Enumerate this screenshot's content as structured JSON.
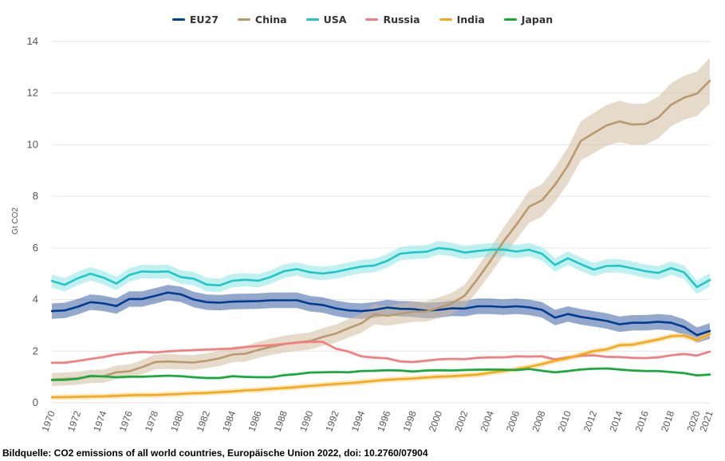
{
  "chart_data": {
    "type": "line",
    "ylabel": "Gt CO2",
    "ylim": [
      0,
      14
    ],
    "yticks": [
      0,
      2,
      4,
      6,
      8,
      10,
      12,
      14
    ],
    "xlim": [
      1970,
      2021
    ],
    "xticks": [
      1970,
      1972,
      1974,
      1976,
      1978,
      1980,
      1982,
      1984,
      1986,
      1988,
      1990,
      1992,
      1994,
      1996,
      1998,
      2000,
      2002,
      2004,
      2006,
      2008,
      2010,
      2012,
      2014,
      2016,
      2018,
      2020,
      2021
    ],
    "grid": "horizontal",
    "legend_position": "top",
    "x": [
      1970,
      1971,
      1972,
      1973,
      1974,
      1975,
      1976,
      1977,
      1978,
      1979,
      1980,
      1981,
      1982,
      1983,
      1984,
      1985,
      1986,
      1987,
      1988,
      1989,
      1990,
      1991,
      1992,
      1993,
      1994,
      1995,
      1996,
      1997,
      1998,
      1999,
      2000,
      2001,
      2002,
      2003,
      2004,
      2005,
      2006,
      2007,
      2008,
      2009,
      2010,
      2011,
      2012,
      2013,
      2014,
      2015,
      2016,
      2017,
      2018,
      2019,
      2020,
      2021
    ],
    "series": [
      {
        "name": "EU27",
        "color": "#003c8f",
        "band_color": "#3d5fa3",
        "band": 0.3,
        "values": [
          3.55,
          3.58,
          3.72,
          3.9,
          3.85,
          3.75,
          4.02,
          4.02,
          4.14,
          4.27,
          4.2,
          4.0,
          3.9,
          3.88,
          3.92,
          3.93,
          3.94,
          3.97,
          3.97,
          3.97,
          3.84,
          3.79,
          3.66,
          3.58,
          3.55,
          3.6,
          3.69,
          3.64,
          3.63,
          3.57,
          3.6,
          3.66,
          3.65,
          3.74,
          3.74,
          3.71,
          3.74,
          3.7,
          3.6,
          3.3,
          3.44,
          3.33,
          3.25,
          3.17,
          3.04,
          3.1,
          3.1,
          3.14,
          3.1,
          2.94,
          2.62,
          2.78
        ]
      },
      {
        "name": "China",
        "color": "#b99a6f",
        "band_color": "#d2bc9e",
        "band": 0.2,
        "band_growth": 0.055,
        "values": [
          0.9,
          0.92,
          0.95,
          1.02,
          1.03,
          1.18,
          1.22,
          1.38,
          1.58,
          1.6,
          1.58,
          1.56,
          1.63,
          1.72,
          1.87,
          1.9,
          2.05,
          2.17,
          2.27,
          2.34,
          2.39,
          2.55,
          2.68,
          2.89,
          3.08,
          3.43,
          3.37,
          3.45,
          3.53,
          3.54,
          3.68,
          3.85,
          4.15,
          4.8,
          5.5,
          6.25,
          6.9,
          7.6,
          7.85,
          8.45,
          9.2,
          10.15,
          10.45,
          10.75,
          10.9,
          10.78,
          10.8,
          11.05,
          11.55,
          11.82,
          11.98,
          12.48
        ]
      },
      {
        "name": "USA",
        "color": "#21c6c6",
        "band_color": "#8ee4e4",
        "band": 0.26,
        "values": [
          4.72,
          4.57,
          4.82,
          5.0,
          4.85,
          4.62,
          4.95,
          5.09,
          5.07,
          5.09,
          4.87,
          4.81,
          4.58,
          4.55,
          4.73,
          4.77,
          4.73,
          4.88,
          5.1,
          5.18,
          5.06,
          5.01,
          5.07,
          5.18,
          5.28,
          5.32,
          5.5,
          5.78,
          5.83,
          5.85,
          6.0,
          5.94,
          5.82,
          5.88,
          5.93,
          5.94,
          5.86,
          5.93,
          5.77,
          5.34,
          5.6,
          5.37,
          5.16,
          5.3,
          5.31,
          5.21,
          5.1,
          5.03,
          5.22,
          5.06,
          4.48,
          4.76
        ]
      },
      {
        "name": "Russia",
        "color": "#f27f7f",
        "band_color": "#f7b6b6",
        "band": 0.05,
        "values": [
          1.55,
          1.55,
          1.62,
          1.7,
          1.77,
          1.87,
          1.93,
          1.97,
          1.95,
          1.99,
          2.02,
          2.04,
          2.06,
          2.08,
          2.1,
          2.16,
          2.2,
          2.23,
          2.28,
          2.33,
          2.36,
          2.36,
          2.1,
          1.98,
          1.8,
          1.75,
          1.72,
          1.6,
          1.58,
          1.63,
          1.68,
          1.7,
          1.69,
          1.74,
          1.76,
          1.76,
          1.8,
          1.79,
          1.8,
          1.68,
          1.76,
          1.82,
          1.84,
          1.78,
          1.77,
          1.74,
          1.73,
          1.76,
          1.84,
          1.89,
          1.83,
          1.98
        ]
      },
      {
        "name": "India",
        "color": "#f5a914",
        "band_color": "#f9d088",
        "band": 0.1,
        "values": [
          0.21,
          0.22,
          0.23,
          0.24,
          0.25,
          0.27,
          0.29,
          0.3,
          0.3,
          0.32,
          0.34,
          0.37,
          0.38,
          0.41,
          0.44,
          0.48,
          0.5,
          0.54,
          0.57,
          0.61,
          0.65,
          0.69,
          0.73,
          0.76,
          0.8,
          0.85,
          0.89,
          0.92,
          0.94,
          0.98,
          1.01,
          1.03,
          1.06,
          1.09,
          1.17,
          1.23,
          1.3,
          1.39,
          1.5,
          1.63,
          1.73,
          1.86,
          2.0,
          2.07,
          2.23,
          2.25,
          2.35,
          2.45,
          2.58,
          2.6,
          2.43,
          2.67
        ]
      },
      {
        "name": "Japan",
        "color": "#17a93b",
        "band_color": "#8fd79f",
        "band": 0.05,
        "values": [
          0.88,
          0.89,
          0.93,
          1.04,
          1.02,
          0.99,
          1.01,
          1.01,
          1.03,
          1.05,
          1.03,
          0.99,
          0.96,
          0.96,
          1.03,
          1.0,
          0.99,
          0.99,
          1.07,
          1.11,
          1.17,
          1.18,
          1.19,
          1.18,
          1.23,
          1.24,
          1.26,
          1.25,
          1.21,
          1.25,
          1.26,
          1.25,
          1.27,
          1.28,
          1.29,
          1.28,
          1.27,
          1.31,
          1.24,
          1.18,
          1.23,
          1.29,
          1.32,
          1.33,
          1.29,
          1.25,
          1.23,
          1.23,
          1.19,
          1.15,
          1.06,
          1.09
        ]
      }
    ]
  },
  "source_text": "Bildquelle: CO2 emissions of all world countries, Europäische Union 2022, doi: 10.2760/07904"
}
